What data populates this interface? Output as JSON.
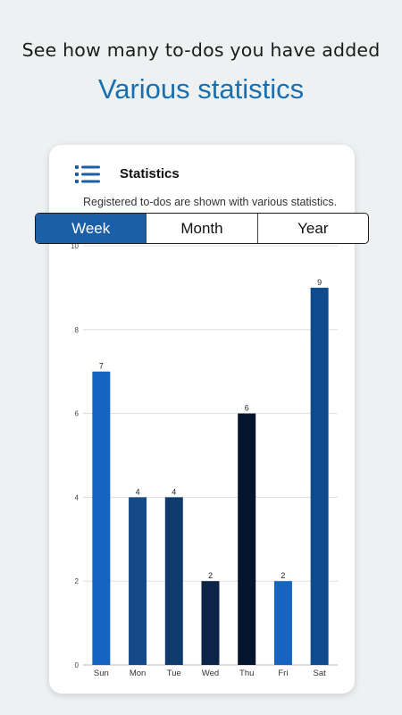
{
  "promo": {
    "headline": "See how many to-dos you have added",
    "subheadline": "Various statistics"
  },
  "card": {
    "title": "Statistics",
    "description": "Registered to-dos are shown with various statistics.",
    "menu_icon": "hamburger-list-icon"
  },
  "tabs": [
    {
      "label": "Week",
      "active": true
    },
    {
      "label": "Month",
      "active": false
    },
    {
      "label": "Year",
      "active": false
    }
  ],
  "colors": {
    "accent": "#1b5fa8",
    "headline_blue": "#1a6fae"
  },
  "chart_data": {
    "type": "bar",
    "categories": [
      "Sun",
      "Mon",
      "Tue",
      "Wed",
      "Thu",
      "Fri",
      "Sat"
    ],
    "values": [
      7,
      4,
      4,
      2,
      6,
      2,
      9
    ],
    "bar_colors": [
      "#1565c0",
      "#154a88",
      "#0f3a6e",
      "#0d2448",
      "#06152e",
      "#1565c0",
      "#0f4a8c"
    ],
    "ylim": [
      0,
      10
    ],
    "yticks": [
      0,
      2,
      4,
      6,
      8,
      10
    ],
    "grid": true,
    "data_labels": true,
    "title": "",
    "xlabel": "",
    "ylabel": ""
  }
}
